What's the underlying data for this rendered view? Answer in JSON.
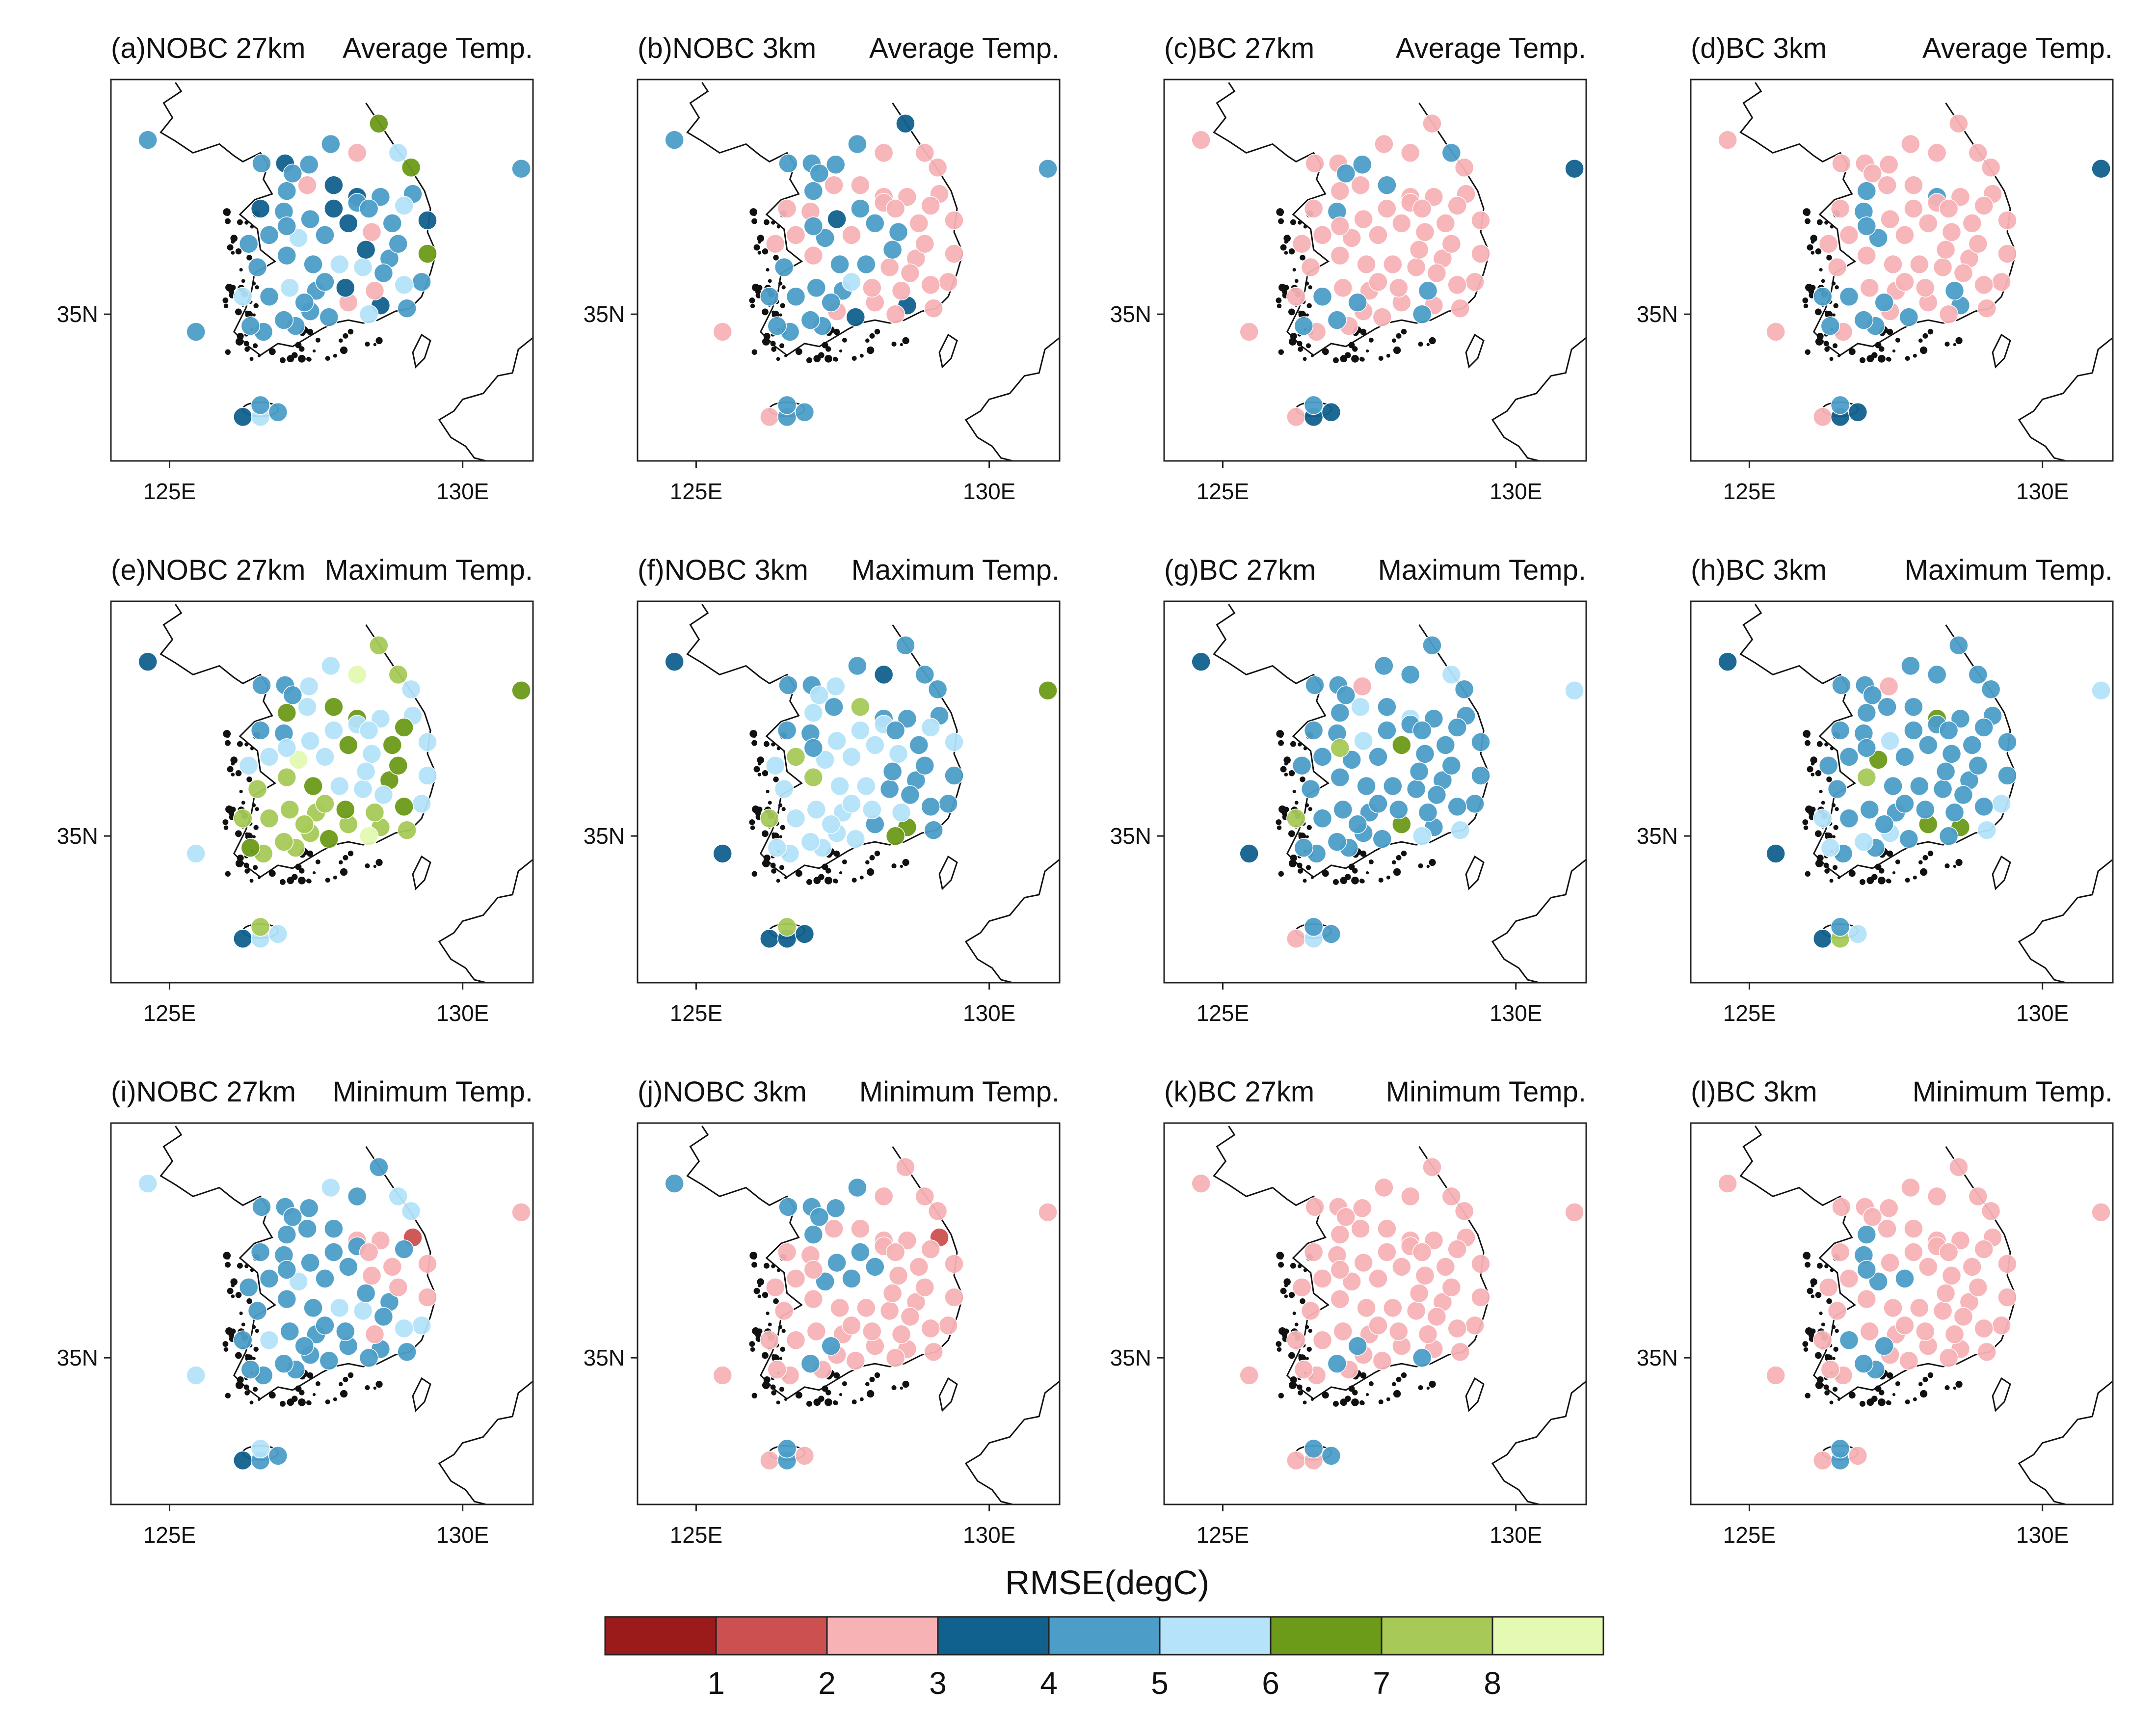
{
  "figure": {
    "colorbar": {
      "title": "RMSE(degC)",
      "colors": [
        "#9b1b1b",
        "#cc5050",
        "#f7b2b5",
        "#11618e",
        "#4c9dc7",
        "#b4e3fa",
        "#6c9a19",
        "#a6c957",
        "#e4f9b2"
      ],
      "tick_labels": [
        "1",
        "2",
        "3",
        "4",
        "5",
        "6",
        "7",
        "8"
      ]
    },
    "axes": {
      "lon_ticks": [
        "125E",
        "130E"
      ],
      "lat_ticks": [
        "35N"
      ],
      "lon_range": [
        124.0,
        131.2
      ],
      "lat_range": [
        32.5,
        39.0
      ]
    }
  },
  "panels": [
    {
      "id": "a",
      "label": "(a)NOBC 27km",
      "variable": "Average Temp."
    },
    {
      "id": "b",
      "label": "(b)NOBC 3km",
      "variable": "Average Temp."
    },
    {
      "id": "c",
      "label": "(c)BC 27km",
      "variable": "Average Temp."
    },
    {
      "id": "d",
      "label": "(d)BC 3km",
      "variable": "Average Temp."
    },
    {
      "id": "e",
      "label": "(e)NOBC 27km",
      "variable": "Maximum Temp."
    },
    {
      "id": "f",
      "label": "(f)NOBC 3km",
      "variable": "Maximum Temp."
    },
    {
      "id": "g",
      "label": "(g)BC 27km",
      "variable": "Maximum Temp."
    },
    {
      "id": "h",
      "label": "(h)BC 3km",
      "variable": "Maximum Temp."
    },
    {
      "id": "i",
      "label": "(i)NOBC 27km",
      "variable": "Minimum Temp."
    },
    {
      "id": "j",
      "label": "(j)NOBC 3km",
      "variable": "Minimum Temp."
    },
    {
      "id": "k",
      "label": "(k)BC 27km",
      "variable": "Minimum Temp."
    },
    {
      "id": "l",
      "label": "(l)BC 3km",
      "variable": "Minimum Temp."
    }
  ],
  "stations": [
    [
      124.63,
      37.97
    ],
    [
      126.57,
      37.57
    ],
    [
      126.97,
      37.57
    ],
    [
      127.38,
      37.55
    ],
    [
      127.75,
      37.9
    ],
    [
      128.2,
      37.75
    ],
    [
      128.57,
      38.25
    ],
    [
      128.9,
      37.75
    ],
    [
      129.12,
      37.5
    ],
    [
      129.15,
      37.05
    ],
    [
      129.4,
      36.6
    ],
    [
      129.4,
      36.03
    ],
    [
      129.3,
      35.55
    ],
    [
      129.05,
      35.1
    ],
    [
      128.6,
      35.15
    ],
    [
      128.05,
      35.2
    ],
    [
      127.72,
      34.95
    ],
    [
      127.15,
      34.8
    ],
    [
      126.6,
      34.7
    ],
    [
      126.38,
      34.8
    ],
    [
      126.25,
      35.3
    ],
    [
      126.5,
      35.8
    ],
    [
      126.7,
      36.35
    ],
    [
      126.55,
      36.8
    ],
    [
      127.0,
      37.1
    ],
    [
      127.4,
      36.62
    ],
    [
      127.35,
      37.2
    ],
    [
      127.8,
      37.2
    ],
    [
      128.2,
      37.0
    ],
    [
      128.6,
      37.0
    ],
    [
      128.8,
      36.55
    ],
    [
      128.45,
      36.4
    ],
    [
      128.05,
      36.55
    ],
    [
      127.65,
      36.35
    ],
    [
      127.2,
      36.3
    ],
    [
      127.0,
      36.0
    ],
    [
      127.45,
      35.85
    ],
    [
      127.9,
      35.85
    ],
    [
      128.3,
      35.8
    ],
    [
      128.75,
      35.95
    ],
    [
      129.0,
      35.5
    ],
    [
      128.5,
      35.4
    ],
    [
      128.0,
      35.45
    ],
    [
      127.5,
      35.4
    ],
    [
      127.05,
      35.45
    ],
    [
      126.7,
      35.3
    ],
    [
      126.95,
      34.9
    ],
    [
      127.4,
      35.05
    ],
    [
      128.4,
      35.0
    ],
    [
      128.9,
      36.2
    ],
    [
      127.1,
      37.4
    ],
    [
      127.8,
      36.8
    ],
    [
      126.95,
      36.75
    ],
    [
      127.0,
      36.5
    ],
    [
      128.35,
      36.1
    ],
    [
      127.65,
      35.55
    ],
    [
      128.2,
      36.9
    ],
    [
      129.0,
      36.85
    ],
    [
      126.35,
      36.2
    ],
    [
      127.3,
      35.2
    ],
    [
      128.65,
      35.7
    ],
    [
      128.4,
      36.8
    ],
    [
      125.45,
      34.7
    ],
    [
      131.0,
      37.48
    ],
    [
      126.25,
      33.25
    ],
    [
      126.55,
      33.25
    ],
    [
      126.55,
      33.45
    ],
    [
      126.85,
      33.33
    ]
  ],
  "station_values": {
    "a": [
      4.5,
      4.7,
      3.8,
      4.5,
      4.5,
      2.6,
      6.5,
      5.5,
      6.0,
      4.5,
      3.0,
      6.0,
      4.5,
      4.8,
      3.8,
      2.2,
      4.5,
      4.5,
      4.5,
      4.8,
      5.0,
      4.5,
      4.8,
      3.8,
      4.5,
      4.5,
      2.5,
      3.8,
      3.8,
      4.5,
      4.5,
      2.5,
      3.8,
      4.5,
      5.6,
      4.5,
      4.5,
      5.0,
      5.5,
      4.5,
      5.5,
      2.2,
      3.8,
      4.5,
      5.0,
      4.8,
      4.5,
      4.5,
      5.0,
      4.5,
      4.5,
      3.8,
      4.5,
      4.5,
      3.8,
      4.5,
      4.8,
      5.5,
      4.5,
      4.5,
      4.5,
      4.5,
      4.8,
      4.5,
      3.6,
      5.5,
      4.8,
      4.8
    ],
    "b": [
      4.5,
      4.5,
      4.8,
      4.5,
      4.8,
      2.5,
      3.0,
      2.5,
      2.5,
      2.5,
      2.5,
      2.5,
      2.5,
      2.5,
      3.0,
      2.5,
      3.2,
      4.5,
      4.5,
      4.5,
      4.8,
      4.5,
      2.5,
      2.5,
      4.5,
      3.0,
      2.5,
      2.5,
      2.5,
      2.5,
      2.5,
      4.5,
      4.5,
      2.5,
      4.5,
      2.5,
      4.5,
      4.5,
      2.5,
      2.5,
      2.5,
      2.5,
      2.5,
      4.5,
      4.5,
      4.5,
      4.5,
      2.5,
      2.5,
      2.5,
      4.5,
      4.5,
      2.5,
      4.5,
      4.5,
      5.0,
      2.5,
      2.5,
      2.5,
      4.5,
      2.5,
      2.5,
      2.5,
      4.8,
      2.5,
      4.5,
      4.8,
      4.5
    ],
    "c": [
      2.5,
      2.2,
      2.5,
      4.5,
      2.5,
      2.5,
      2.5,
      4.5,
      2.5,
      2.5,
      2.5,
      2.5,
      2.5,
      2.5,
      2.5,
      2.5,
      2.5,
      2.5,
      2.5,
      4.5,
      2.5,
      2.5,
      2.5,
      2.5,
      2.5,
      2.5,
      2.2,
      4.5,
      2.5,
      2.5,
      2.5,
      2.5,
      2.5,
      2.5,
      2.5,
      2.2,
      2.5,
      2.2,
      2.5,
      2.5,
      2.5,
      4.5,
      2.5,
      2.5,
      2.2,
      4.5,
      4.5,
      2.2,
      4.5,
      2.5,
      4.5,
      2.5,
      4.5,
      2.5,
      2.2,
      2.5,
      2.2,
      2.5,
      2.5,
      4.5,
      2.5,
      2.5,
      2.5,
      3.5,
      2.2,
      3.6,
      4.5,
      3.5
    ],
    "d": [
      2.5,
      2.2,
      2.5,
      2.5,
      2.5,
      2.2,
      2.5,
      2.5,
      2.5,
      2.5,
      2.5,
      2.5,
      2.5,
      2.5,
      4.5,
      2.5,
      4.5,
      4.5,
      2.5,
      4.5,
      4.5,
      2.5,
      2.5,
      2.5,
      4.5,
      2.5,
      2.2,
      2.5,
      4.5,
      2.5,
      2.5,
      2.5,
      2.5,
      2.5,
      4.5,
      2.5,
      2.5,
      2.5,
      2.5,
      2.5,
      2.5,
      4.5,
      2.2,
      2.5,
      2.2,
      4.5,
      4.5,
      2.5,
      2.5,
      2.5,
      2.5,
      2.5,
      4.5,
      4.5,
      2.2,
      2.5,
      2.5,
      2.5,
      2.5,
      4.5,
      2.5,
      2.5,
      2.5,
      3.5,
      2.5,
      3.6,
      4.5,
      3.5
    ],
    "e": [
      3.6,
      4.5,
      4.5,
      5.6,
      5.6,
      8.5,
      7.5,
      7.5,
      5.6,
      5.6,
      5.6,
      5.0,
      5.0,
      7.5,
      7.5,
      7.5,
      6.5,
      7.5,
      7.5,
      6.5,
      7.5,
      7.5,
      5.0,
      4.5,
      6.5,
      5.6,
      5.6,
      6.5,
      6.5,
      5.6,
      6.5,
      5.6,
      6.5,
      5.6,
      8.5,
      7.5,
      6.5,
      5.6,
      5.6,
      6.5,
      6.5,
      7.5,
      6.5,
      7.5,
      7.5,
      7.5,
      7.5,
      7.5,
      8.5,
      6.5,
      4.5,
      5.6,
      4.5,
      5.0,
      5.6,
      7.5,
      5.6,
      6.5,
      5.6,
      7.5,
      5.6,
      5.6,
      5.6,
      6.5,
      3.5,
      5.6,
      7.5,
      5.6
    ],
    "f": [
      3.6,
      4.5,
      4.5,
      5.0,
      4.5,
      3.6,
      4.5,
      4.5,
      4.5,
      4.5,
      5.6,
      4.5,
      4.5,
      4.5,
      6.5,
      4.5,
      5.0,
      5.6,
      5.6,
      5.6,
      7.5,
      5.6,
      7.5,
      4.5,
      5.6,
      5.6,
      4.5,
      7.5,
      4.5,
      4.5,
      4.5,
      5.6,
      5.6,
      5.6,
      5.6,
      7.5,
      5.6,
      5.6,
      4.5,
      4.5,
      4.5,
      5.6,
      5.6,
      5.6,
      5.6,
      5.6,
      5.6,
      5.6,
      6.5,
      4.5,
      5.0,
      5.6,
      4.5,
      4.5,
      4.5,
      5.6,
      5.6,
      5.6,
      5.6,
      5.6,
      4.5,
      4.5,
      3.6,
      6.5,
      3.5,
      3.6,
      7.5,
      3.6
    ],
    "g": [
      3.6,
      4.5,
      4.5,
      2.5,
      4.5,
      4.5,
      4.5,
      5.0,
      4.5,
      4.5,
      4.5,
      4.5,
      4.5,
      5.6,
      4.5,
      6.5,
      4.5,
      4.5,
      4.5,
      4.5,
      7.5,
      4.5,
      4.5,
      4.5,
      4.5,
      5.0,
      5.6,
      4.5,
      5.6,
      4.5,
      4.5,
      4.5,
      6.5,
      4.5,
      4.5,
      4.5,
      4.5,
      4.5,
      4.5,
      4.5,
      4.5,
      4.5,
      4.5,
      4.5,
      4.5,
      4.5,
      4.5,
      4.5,
      5.6,
      4.5,
      4.5,
      4.5,
      4.5,
      7.5,
      4.5,
      4.5,
      4.5,
      4.5,
      4.5,
      4.5,
      4.5,
      4.5,
      3.6,
      5.0,
      2.5,
      5.6,
      4.5,
      4.5
    ],
    "h": [
      3.6,
      4.5,
      4.5,
      2.5,
      4.5,
      4.5,
      4.5,
      4.5,
      4.5,
      4.5,
      4.5,
      4.5,
      5.0,
      5.0,
      6.5,
      6.5,
      4.5,
      4.5,
      4.5,
      5.0,
      5.0,
      4.5,
      4.5,
      4.5,
      4.5,
      5.0,
      4.5,
      4.5,
      6.5,
      4.5,
      4.5,
      4.5,
      4.5,
      4.5,
      6.5,
      7.5,
      4.5,
      4.5,
      4.5,
      4.5,
      4.5,
      4.5,
      4.5,
      4.5,
      4.5,
      4.5,
      5.0,
      5.0,
      4.5,
      4.5,
      4.5,
      4.5,
      4.5,
      4.5,
      4.5,
      4.5,
      4.5,
      4.5,
      4.5,
      4.5,
      4.5,
      4.5,
      3.6,
      5.0,
      3.5,
      7.5,
      4.5,
      5.6
    ],
    "i": [
      5.0,
      4.5,
      4.5,
      4.5,
      5.6,
      4.5,
      4.5,
      5.6,
      5.6,
      1.8,
      2.2,
      2.2,
      5.6,
      4.5,
      4.5,
      4.8,
      4.8,
      4.5,
      4.5,
      4.8,
      4.8,
      4.5,
      4.5,
      4.5,
      4.5,
      4.5,
      4.5,
      4.5,
      2.5,
      2.2,
      2.5,
      2.5,
      4.5,
      4.5,
      5.6,
      4.5,
      4.5,
      5.6,
      5.6,
      4.5,
      5.6,
      2.2,
      4.8,
      4.5,
      4.5,
      5.0,
      4.5,
      4.5,
      4.5,
      2.5,
      4.5,
      4.5,
      4.5,
      4.5,
      4.5,
      4.5,
      4.5,
      4.5,
      4.5,
      4.5,
      4.5,
      2.5,
      5.0,
      2.5,
      3.6,
      4.5,
      5.0,
      4.8
    ],
    "j": [
      4.5,
      4.5,
      4.5,
      4.5,
      4.5,
      2.5,
      2.5,
      2.5,
      2.5,
      1.8,
      2.2,
      2.2,
      2.5,
      2.5,
      2.5,
      2.5,
      2.5,
      2.5,
      2.5,
      2.5,
      2.5,
      2.5,
      2.5,
      2.5,
      4.5,
      4.5,
      2.5,
      2.5,
      2.2,
      2.2,
      2.5,
      2.5,
      4.5,
      4.5,
      4.5,
      2.5,
      2.5,
      2.5,
      2.5,
      2.5,
      2.5,
      2.5,
      2.5,
      2.5,
      2.5,
      2.5,
      4.5,
      2.5,
      2.5,
      2.5,
      4.5,
      4.5,
      2.5,
      2.5,
      2.5,
      2.5,
      2.5,
      2.5,
      2.5,
      4.5,
      2.5,
      2.5,
      2.5,
      2.5,
      2.5,
      4.5,
      4.5,
      2.5
    ],
    "k": [
      2.5,
      2.5,
      2.5,
      2.5,
      2.5,
      2.2,
      2.5,
      2.2,
      2.2,
      2.5,
      2.2,
      2.5,
      2.5,
      2.5,
      2.5,
      2.5,
      2.5,
      2.5,
      2.5,
      2.5,
      2.5,
      2.5,
      2.5,
      2.5,
      2.5,
      2.5,
      2.2,
      2.5,
      2.2,
      2.5,
      2.2,
      2.2,
      2.2,
      2.5,
      2.5,
      2.5,
      2.5,
      2.5,
      2.5,
      2.5,
      2.5,
      2.5,
      2.5,
      2.5,
      2.5,
      2.5,
      4.5,
      2.5,
      4.5,
      2.5,
      2.5,
      2.5,
      2.5,
      2.5,
      2.5,
      2.5,
      2.5,
      2.5,
      2.5,
      4.5,
      2.5,
      2.5,
      2.5,
      2.5,
      2.2,
      2.5,
      4.5,
      4.5
    ],
    "l": [
      2.5,
      2.2,
      2.5,
      2.5,
      2.5,
      2.2,
      2.5,
      2.5,
      2.5,
      2.5,
      2.5,
      2.2,
      2.5,
      2.5,
      2.5,
      2.5,
      2.5,
      4.5,
      2.5,
      2.5,
      2.5,
      2.5,
      2.5,
      2.5,
      4.5,
      2.5,
      2.2,
      2.5,
      2.5,
      2.5,
      2.5,
      2.5,
      2.5,
      4.5,
      4.5,
      2.5,
      2.5,
      2.5,
      2.5,
      2.5,
      2.5,
      2.5,
      2.5,
      2.5,
      2.5,
      4.5,
      4.5,
      2.5,
      2.5,
      2.5,
      2.5,
      2.5,
      4.5,
      4.5,
      2.5,
      2.5,
      2.5,
      2.5,
      2.5,
      4.5,
      2.5,
      2.5,
      2.2,
      2.5,
      2.5,
      4.5,
      4.5,
      2.5
    ]
  }
}
